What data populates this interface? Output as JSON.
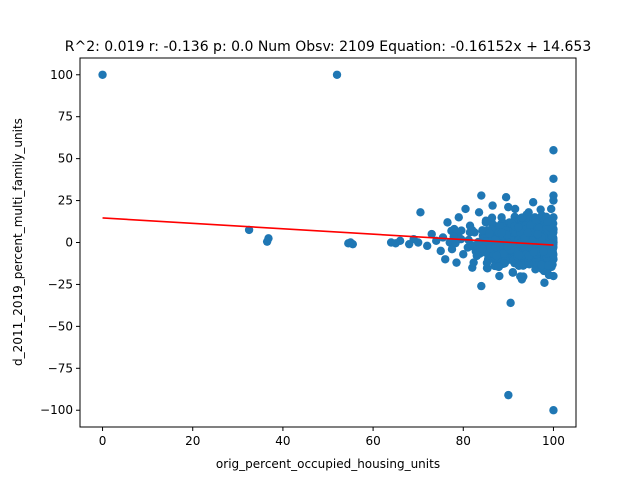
{
  "chart_data": {
    "type": "scatter",
    "title": "R^2: 0.019 r: -0.136 p: 0.0 Num Obsv: 2109 Equation: -0.16152x + 14.653",
    "xlabel": "orig_percent_occupied_housing_units",
    "ylabel": "d_2011_2019_percent_multi_family_units",
    "xlim": [
      -5,
      105
    ],
    "ylim": [
      -110,
      110
    ],
    "x_ticks": [
      0,
      20,
      40,
      60,
      80,
      100
    ],
    "y_ticks": [
      -100,
      -75,
      -50,
      -25,
      0,
      25,
      50,
      75,
      100
    ],
    "grid": false,
    "point_color": "#1f77b4",
    "fit_line": {
      "slope": -0.16152,
      "intercept": 14.653,
      "x_range": [
        0,
        100
      ],
      "color": "#ff0000"
    },
    "series": [
      {
        "points": [
          [
            0,
            100
          ],
          [
            52,
            100
          ],
          [
            32.5,
            7.5
          ],
          [
            36.5,
            0.5
          ],
          [
            36.8,
            2.5
          ],
          [
            54.5,
            -0.5
          ],
          [
            55,
            0
          ],
          [
            55.5,
            -1
          ],
          [
            64,
            0
          ],
          [
            65,
            -0.5
          ],
          [
            66,
            1
          ],
          [
            68,
            -1
          ],
          [
            69,
            2
          ],
          [
            70,
            0
          ],
          [
            70.5,
            18
          ],
          [
            72,
            -2
          ],
          [
            73,
            5
          ],
          [
            74,
            1
          ],
          [
            75,
            -5
          ],
          [
            75.5,
            3
          ],
          [
            76,
            -10
          ],
          [
            76.5,
            12
          ],
          [
            77,
            0
          ],
          [
            77.5,
            -4
          ],
          [
            78,
            8
          ],
          [
            78.5,
            -12
          ],
          [
            79,
            15
          ],
          [
            79.5,
            2
          ],
          [
            80,
            -7
          ],
          [
            80.5,
            20
          ],
          [
            81,
            -3
          ],
          [
            81.5,
            10
          ],
          [
            82,
            -15
          ],
          [
            82.5,
            6
          ],
          [
            83,
            -8
          ],
          [
            83.5,
            18
          ],
          [
            84,
            -26
          ],
          [
            84,
            28
          ],
          [
            84.5,
            -4
          ],
          [
            85,
            12
          ],
          [
            85.5,
            -10
          ],
          [
            86,
            3
          ],
          [
            86.5,
            22
          ],
          [
            87,
            -14
          ],
          [
            87.5,
            8
          ],
          [
            88,
            -20
          ],
          [
            88.5,
            15
          ],
          [
            89,
            -6
          ],
          [
            89.5,
            27
          ],
          [
            90,
            -91
          ],
          [
            90.5,
            -36
          ],
          [
            90.5,
            5
          ],
          [
            91,
            -18
          ],
          [
            91.5,
            20
          ],
          [
            92,
            -3
          ],
          [
            92.5,
            14
          ],
          [
            93,
            -22
          ],
          [
            93.5,
            9
          ],
          [
            94,
            -12
          ],
          [
            94.5,
            18
          ],
          [
            95,
            -1
          ],
          [
            95.5,
            24
          ],
          [
            96,
            -16
          ],
          [
            96.5,
            7
          ],
          [
            97,
            -9
          ],
          [
            97.5,
            16
          ],
          [
            98,
            -24
          ],
          [
            98.5,
            11
          ],
          [
            99,
            -5
          ],
          [
            99.5,
            20
          ],
          [
            100,
            55
          ],
          [
            100,
            38
          ],
          [
            100,
            28
          ],
          [
            100,
            25
          ],
          [
            100,
            -100
          ],
          [
            100,
            -20
          ],
          [
            100,
            -10
          ],
          [
            100,
            8
          ],
          [
            100,
            15
          ],
          [
            100,
            0
          ]
        ]
      }
    ]
  }
}
